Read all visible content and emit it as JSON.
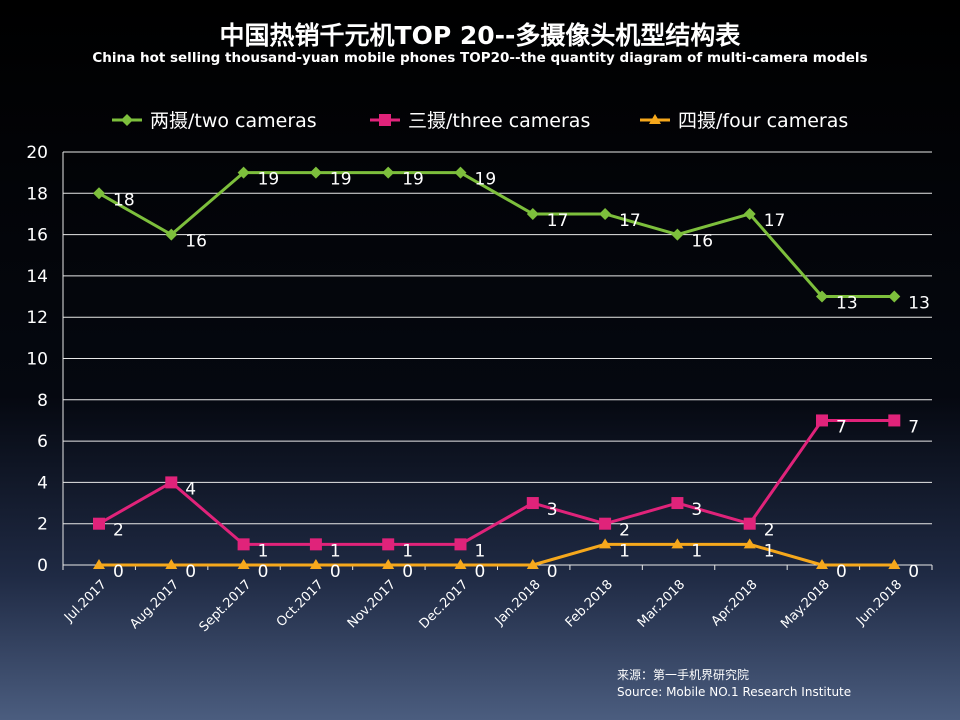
{
  "title": "中国热销千元机TOP 20--多摄像头机型结构表",
  "subtitle": "China hot selling thousand-yuan mobile phones TOP20--the quantity diagram of multi-camera models",
  "source": {
    "line1": "来源：第一手机界研究院",
    "line2": "Source: Mobile NO.1 Research Institute"
  },
  "chart_data": {
    "type": "line",
    "categories": [
      "Jul.2017",
      "Aug.2017",
      "Sept.2017",
      "Oct.2017",
      "Nov.2017",
      "Dec.2017",
      "Jan.2018",
      "Feb.2018",
      "Mar.2018",
      "Apr.2018",
      "May.2018",
      "Jun.2018"
    ],
    "ylim": [
      0,
      20
    ],
    "yticks": [
      0,
      2,
      4,
      6,
      8,
      10,
      12,
      14,
      16,
      18,
      20
    ],
    "grid": true,
    "legend_position": "top",
    "series": [
      {
        "name": "两摄/two cameras",
        "color": "#7dbf3c",
        "marker": "diamond",
        "values": [
          18,
          16,
          19,
          19,
          19,
          19,
          17,
          17,
          16,
          17,
          13,
          13
        ]
      },
      {
        "name": "三摄/three cameras",
        "color": "#e0237a",
        "marker": "square",
        "values": [
          2,
          4,
          1,
          1,
          1,
          1,
          3,
          2,
          3,
          2,
          7,
          7
        ]
      },
      {
        "name": "四摄/four cameras",
        "color": "#f6a81c",
        "marker": "triangle",
        "values": [
          0,
          0,
          0,
          0,
          0,
          0,
          0,
          1,
          1,
          1,
          0,
          0
        ]
      }
    ]
  }
}
